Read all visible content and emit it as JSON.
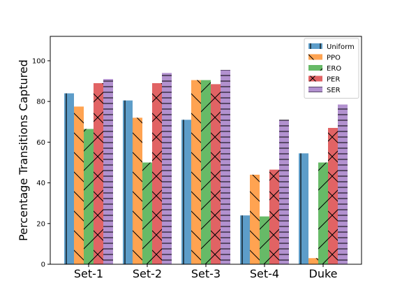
{
  "chart_data": {
    "type": "bar",
    "title": "",
    "xlabel": "",
    "ylabel": "Percentage Transitions Captured",
    "ylim": [
      0,
      112
    ],
    "yticks": [
      0,
      20,
      40,
      60,
      80,
      100
    ],
    "grid": false,
    "legend_position": "top-right",
    "categories": [
      "Set-1",
      "Set-2",
      "Set-3",
      "Set-4",
      "Duke"
    ],
    "series": [
      {
        "name": "Uniform",
        "color": "#1f77b4",
        "hatch": "vertical",
        "values": [
          84,
          80.5,
          71,
          24,
          54.5
        ]
      },
      {
        "name": "PPO",
        "color": "#ff7f0e",
        "hatch": "diagonal-cross",
        "values": [
          77.5,
          72,
          90.5,
          44,
          3
        ]
      },
      {
        "name": "ERO",
        "color": "#2ca02c",
        "hatch": "diagonal",
        "values": [
          66.5,
          50,
          90.5,
          23.5,
          50
        ]
      },
      {
        "name": "PER",
        "color": "#d62728",
        "hatch": "cross",
        "values": [
          89,
          89,
          88.5,
          46.5,
          67
        ]
      },
      {
        "name": "SER",
        "color": "#9467bd",
        "hatch": "horizontal",
        "values": [
          91,
          94,
          95.5,
          71,
          78.5
        ]
      }
    ]
  }
}
